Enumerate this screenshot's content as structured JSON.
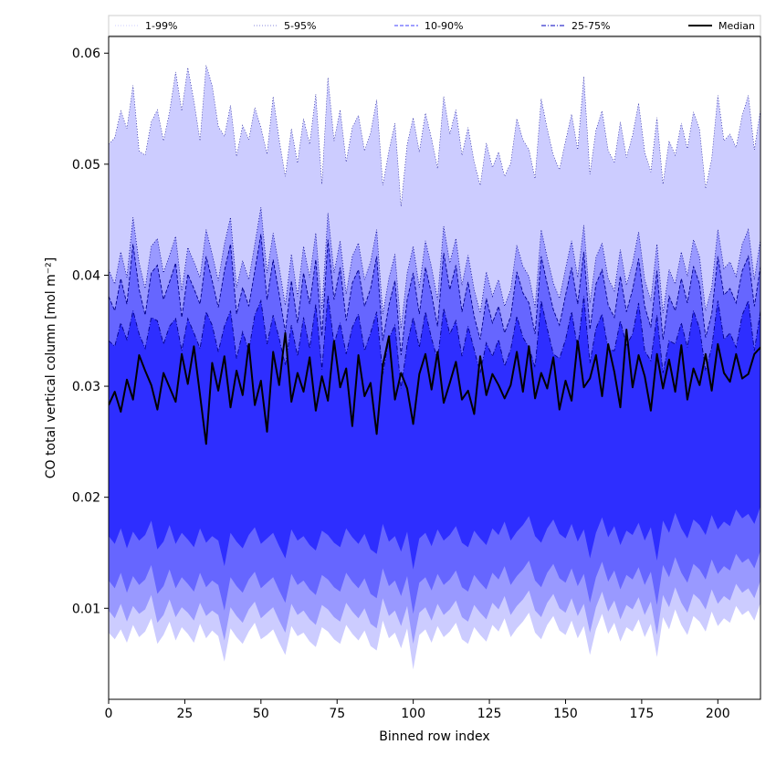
{
  "chart_data": {
    "type": "area",
    "title": "",
    "xlabel": "Binned row index",
    "ylabel": "CO total vertical column [mol m⁻²]",
    "xlim": [
      0,
      214
    ],
    "ylim": [
      0.0018,
      0.0615
    ],
    "x_ticks": [
      0,
      25,
      50,
      75,
      100,
      125,
      150,
      175,
      200
    ],
    "y_ticks": [
      0.01,
      0.02,
      0.03,
      0.04,
      0.05,
      0.06
    ],
    "x_tick_labels": [
      "0",
      "25",
      "50",
      "75",
      "100",
      "125",
      "150",
      "175",
      "200"
    ],
    "y_tick_labels": [
      "0.01",
      "0.02",
      "0.03",
      "0.04",
      "0.05",
      "0.06"
    ],
    "grid": false,
    "legend_position": "top",
    "colors": {
      "band_1_99": "#ccccff",
      "band_5_95": "#9999ff",
      "band_10_90": "#6666ff",
      "band_25_75": "#2e2eff",
      "median": "#000000",
      "outline": "#00008b"
    },
    "legend": [
      {
        "label": "1-99%",
        "style": "dotted"
      },
      {
        "label": "5-95%",
        "style": "dotted"
      },
      {
        "label": "10-90%",
        "style": "dashed"
      },
      {
        "label": "25-75%",
        "style": "dashdot"
      },
      {
        "label": "Median",
        "style": "solid"
      }
    ],
    "x_start": 0,
    "x_step": 2,
    "series": [
      {
        "name": "1-99%",
        "lower": [
          0.0078,
          0.0072,
          0.0081,
          0.0069,
          0.0085,
          0.0074,
          0.0079,
          0.0091,
          0.0068,
          0.0076,
          0.0088,
          0.0071,
          0.0083,
          0.0077,
          0.0069,
          0.0086,
          0.0073,
          0.008,
          0.0075,
          0.0052,
          0.0082,
          0.0074,
          0.0068,
          0.0079,
          0.0087,
          0.0072,
          0.0076,
          0.0081,
          0.0069,
          0.0058,
          0.0084,
          0.0075,
          0.0078,
          0.007,
          0.0065,
          0.0083,
          0.0079,
          0.0072,
          0.0068,
          0.0085,
          0.0077,
          0.0071,
          0.008,
          0.0066,
          0.0062,
          0.0089,
          0.0073,
          0.0078,
          0.0064,
          0.0082,
          0.0045,
          0.0076,
          0.0081,
          0.0069,
          0.0084,
          0.0074,
          0.0079,
          0.0087,
          0.0072,
          0.0068,
          0.0083,
          0.0076,
          0.007,
          0.0085,
          0.0079,
          0.0091,
          0.0074,
          0.0082,
          0.0088,
          0.0096,
          0.0078,
          0.0072,
          0.0085,
          0.0093,
          0.008,
          0.0076,
          0.0089,
          0.0073,
          0.0084,
          0.0058,
          0.0081,
          0.0095,
          0.0077,
          0.0087,
          0.007,
          0.0083,
          0.0079,
          0.009,
          0.0074,
          0.0086,
          0.0056,
          0.0092,
          0.0081,
          0.0099,
          0.0085,
          0.0076,
          0.0093,
          0.0088,
          0.0079,
          0.0097,
          0.0084,
          0.0091,
          0.0087,
          0.0102,
          0.0094,
          0.0098,
          0.0089,
          0.0105,
          0.0096,
          0.0108
        ]
      },
      {
        "name": "1-99%",
        "upper": [
          0.0518,
          0.0524,
          0.0548,
          0.0532,
          0.0571,
          0.0512,
          0.0508,
          0.0538,
          0.0549,
          0.0521,
          0.0547,
          0.0583,
          0.0548,
          0.0587,
          0.0557,
          0.0521,
          0.0589,
          0.0571,
          0.0534,
          0.0525,
          0.0553,
          0.0507,
          0.0535,
          0.0522,
          0.0551,
          0.0533,
          0.0509,
          0.0561,
          0.0522,
          0.0489,
          0.0532,
          0.0501,
          0.0541,
          0.0518,
          0.0563,
          0.0482,
          0.0578,
          0.0521,
          0.0549,
          0.0502,
          0.0533,
          0.0544,
          0.0512,
          0.0528,
          0.0558,
          0.0481,
          0.0512,
          0.0537,
          0.0462,
          0.0518,
          0.0542,
          0.0511,
          0.0546,
          0.0523,
          0.0496,
          0.0561,
          0.0527,
          0.0549,
          0.0508,
          0.0533,
          0.0502,
          0.0481,
          0.0519,
          0.0497,
          0.0511,
          0.0489,
          0.0501,
          0.0541,
          0.0522,
          0.0513,
          0.0487,
          0.0559,
          0.0532,
          0.0508,
          0.0495,
          0.0521,
          0.0545,
          0.0513,
          0.0579,
          0.0491,
          0.0531,
          0.0548,
          0.0512,
          0.0502,
          0.0538,
          0.0506,
          0.0526,
          0.0555,
          0.0511,
          0.0493,
          0.0542,
          0.0482,
          0.0521,
          0.0508,
          0.0537,
          0.0514,
          0.0547,
          0.0531,
          0.0478,
          0.0505,
          0.0562,
          0.0521,
          0.0527,
          0.0515,
          0.0544,
          0.0562,
          0.0513,
          0.0549,
          0.0536,
          0.0531
        ]
      },
      {
        "name": "5-95%",
        "lower": [
          0.0098,
          0.0091,
          0.0104,
          0.0088,
          0.0102,
          0.0095,
          0.0099,
          0.0112,
          0.0087,
          0.0094,
          0.0108,
          0.0092,
          0.0101,
          0.0096,
          0.0089,
          0.0105,
          0.0093,
          0.0098,
          0.0094,
          0.0071,
          0.0101,
          0.0093,
          0.0087,
          0.0099,
          0.0106,
          0.0091,
          0.0096,
          0.0101,
          0.0089,
          0.0078,
          0.0104,
          0.0094,
          0.0098,
          0.009,
          0.0085,
          0.0103,
          0.0099,
          0.0092,
          0.0088,
          0.0105,
          0.0097,
          0.0091,
          0.01,
          0.0086,
          0.0082,
          0.0109,
          0.0093,
          0.0098,
          0.0084,
          0.0102,
          0.0068,
          0.0096,
          0.0101,
          0.0089,
          0.0104,
          0.0094,
          0.0099,
          0.0107,
          0.0092,
          0.0088,
          0.0103,
          0.0096,
          0.009,
          0.0105,
          0.0099,
          0.0111,
          0.0094,
          0.0102,
          0.0108,
          0.0116,
          0.0098,
          0.0092,
          0.0105,
          0.0113,
          0.01,
          0.0096,
          0.0109,
          0.0093,
          0.0104,
          0.0078,
          0.0101,
          0.0115,
          0.0097,
          0.0107,
          0.009,
          0.0103,
          0.0099,
          0.011,
          0.0094,
          0.0106,
          0.0076,
          0.0112,
          0.0101,
          0.0119,
          0.0105,
          0.0096,
          0.0113,
          0.0108,
          0.0099,
          0.0117,
          0.0104,
          0.0111,
          0.0107,
          0.0122,
          0.0114,
          0.0118,
          0.0109,
          0.0125,
          0.0116,
          0.0128
        ]
      },
      {
        "name": "5-95%",
        "upper": [
          0.0405,
          0.0392,
          0.0421,
          0.0398,
          0.0452,
          0.0411,
          0.0388,
          0.0426,
          0.0433,
          0.0402,
          0.0418,
          0.0435,
          0.0386,
          0.0425,
          0.0412,
          0.0398,
          0.0441,
          0.0419,
          0.0395,
          0.0428,
          0.0452,
          0.0389,
          0.0413,
          0.0396,
          0.0428,
          0.0461,
          0.0402,
          0.0438,
          0.0407,
          0.0373,
          0.0419,
          0.0381,
          0.0426,
          0.0398,
          0.0438,
          0.0369,
          0.0456,
          0.0402,
          0.0431,
          0.0383,
          0.0417,
          0.0429,
          0.0396,
          0.0412,
          0.0441,
          0.0365,
          0.0397,
          0.0419,
          0.0352,
          0.0402,
          0.0426,
          0.0389,
          0.0431,
          0.0407,
          0.0378,
          0.0444,
          0.0411,
          0.0433,
          0.0391,
          0.0418,
          0.0387,
          0.0366,
          0.0403,
          0.0381,
          0.0396,
          0.0372,
          0.0387,
          0.0427,
          0.0408,
          0.0399,
          0.0371,
          0.0441,
          0.0416,
          0.0393,
          0.0379,
          0.0406,
          0.0431,
          0.0398,
          0.0445,
          0.0375,
          0.0416,
          0.0429,
          0.0397,
          0.0386,
          0.0423,
          0.0391,
          0.0411,
          0.0439,
          0.0396,
          0.0377,
          0.0428,
          0.0366,
          0.0405,
          0.0392,
          0.0421,
          0.0399,
          0.0432,
          0.0416,
          0.0368,
          0.0389,
          0.0441,
          0.0406,
          0.0412,
          0.0399,
          0.0428,
          0.0441,
          0.0396,
          0.0432,
          0.0421,
          0.0436
        ]
      },
      {
        "name": "10-90%",
        "lower": [
          0.0125,
          0.0118,
          0.0132,
          0.0114,
          0.0129,
          0.0121,
          0.0126,
          0.0139,
          0.0113,
          0.012,
          0.0135,
          0.0118,
          0.0128,
          0.0122,
          0.0115,
          0.0132,
          0.0119,
          0.0125,
          0.0121,
          0.0098,
          0.0128,
          0.012,
          0.0114,
          0.0126,
          0.0133,
          0.0118,
          0.0123,
          0.0128,
          0.0116,
          0.0105,
          0.0131,
          0.0121,
          0.0125,
          0.0117,
          0.0112,
          0.013,
          0.0126,
          0.0119,
          0.0115,
          0.0132,
          0.0124,
          0.0118,
          0.0127,
          0.0113,
          0.0109,
          0.0136,
          0.012,
          0.0125,
          0.0111,
          0.0129,
          0.0095,
          0.0123,
          0.0128,
          0.0116,
          0.0131,
          0.0121,
          0.0126,
          0.0134,
          0.0119,
          0.0115,
          0.013,
          0.0123,
          0.0117,
          0.0132,
          0.0126,
          0.0138,
          0.0121,
          0.0129,
          0.0135,
          0.0143,
          0.0125,
          0.0119,
          0.0132,
          0.014,
          0.0127,
          0.0123,
          0.0136,
          0.012,
          0.0131,
          0.0105,
          0.0128,
          0.0142,
          0.0124,
          0.0134,
          0.0117,
          0.013,
          0.0126,
          0.0137,
          0.0121,
          0.0133,
          0.0103,
          0.0139,
          0.0128,
          0.0146,
          0.0132,
          0.0123,
          0.014,
          0.0135,
          0.0126,
          0.0144,
          0.0131,
          0.0138,
          0.0134,
          0.0149,
          0.0141,
          0.0145,
          0.0136,
          0.0152,
          0.0143,
          0.0155
        ]
      },
      {
        "name": "10-90%",
        "upper": [
          0.0381,
          0.0368,
          0.0397,
          0.0374,
          0.0428,
          0.0387,
          0.0364,
          0.0402,
          0.0409,
          0.0378,
          0.0394,
          0.0411,
          0.0362,
          0.0401,
          0.0388,
          0.0374,
          0.0417,
          0.0395,
          0.0371,
          0.0404,
          0.0428,
          0.0365,
          0.0389,
          0.0372,
          0.0404,
          0.0437,
          0.0378,
          0.0414,
          0.0383,
          0.0349,
          0.0395,
          0.0357,
          0.0402,
          0.0374,
          0.0414,
          0.0345,
          0.0432,
          0.0378,
          0.0407,
          0.0359,
          0.0393,
          0.0405,
          0.0372,
          0.0388,
          0.0417,
          0.0341,
          0.0373,
          0.0395,
          0.0328,
          0.0378,
          0.0402,
          0.0365,
          0.0407,
          0.0383,
          0.0354,
          0.042,
          0.0387,
          0.0409,
          0.0367,
          0.0394,
          0.0363,
          0.0342,
          0.0379,
          0.0357,
          0.0372,
          0.0348,
          0.0363,
          0.0403,
          0.0384,
          0.0375,
          0.0347,
          0.0417,
          0.0392,
          0.0369,
          0.0355,
          0.0382,
          0.0407,
          0.0374,
          0.0421,
          0.0351,
          0.0392,
          0.0405,
          0.0373,
          0.0362,
          0.0399,
          0.0367,
          0.0387,
          0.0415,
          0.0372,
          0.0353,
          0.0404,
          0.0342,
          0.0381,
          0.0368,
          0.0397,
          0.0375,
          0.0408,
          0.0392,
          0.0344,
          0.0365,
          0.0417,
          0.0382,
          0.0388,
          0.0375,
          0.0404,
          0.0417,
          0.0372,
          0.0408,
          0.0397,
          0.0412
        ]
      },
      {
        "name": "25-75%",
        "lower": [
          0.0165,
          0.0158,
          0.0172,
          0.0154,
          0.0169,
          0.0161,
          0.0166,
          0.0179,
          0.0153,
          0.016,
          0.0175,
          0.0158,
          0.0168,
          0.0162,
          0.0155,
          0.0172,
          0.0159,
          0.0165,
          0.0161,
          0.0138,
          0.0168,
          0.016,
          0.0154,
          0.0166,
          0.0173,
          0.0158,
          0.0163,
          0.0168,
          0.0156,
          0.0145,
          0.0171,
          0.0161,
          0.0165,
          0.0157,
          0.0152,
          0.017,
          0.0166,
          0.0159,
          0.0155,
          0.0172,
          0.0164,
          0.0158,
          0.0167,
          0.0153,
          0.0149,
          0.0176,
          0.016,
          0.0165,
          0.0151,
          0.0169,
          0.0135,
          0.0163,
          0.0168,
          0.0156,
          0.0171,
          0.0161,
          0.0166,
          0.0174,
          0.0159,
          0.0155,
          0.017,
          0.0163,
          0.0157,
          0.0172,
          0.0166,
          0.0178,
          0.0161,
          0.0169,
          0.0175,
          0.0183,
          0.0165,
          0.0159,
          0.0172,
          0.018,
          0.0167,
          0.0163,
          0.0176,
          0.016,
          0.0171,
          0.0145,
          0.0168,
          0.0182,
          0.0164,
          0.0174,
          0.0157,
          0.017,
          0.0166,
          0.0177,
          0.0161,
          0.0173,
          0.0143,
          0.0179,
          0.0168,
          0.0186,
          0.0172,
          0.0163,
          0.018,
          0.0175,
          0.0166,
          0.0184,
          0.0171,
          0.0178,
          0.0174,
          0.0189,
          0.0181,
          0.0185,
          0.0176,
          0.0192,
          0.0183,
          0.0195
        ]
      },
      {
        "name": "25-75%",
        "upper": [
          0.0341,
          0.0336,
          0.0357,
          0.0342,
          0.0368,
          0.0347,
          0.0334,
          0.0362,
          0.0359,
          0.0338,
          0.0354,
          0.0361,
          0.0332,
          0.0361,
          0.0348,
          0.0334,
          0.0367,
          0.0355,
          0.0331,
          0.0354,
          0.0368,
          0.0325,
          0.0349,
          0.0332,
          0.0364,
          0.0377,
          0.0338,
          0.0364,
          0.0343,
          0.0319,
          0.0355,
          0.0327,
          0.0362,
          0.0334,
          0.0374,
          0.0315,
          0.0382,
          0.0338,
          0.0357,
          0.0329,
          0.0353,
          0.0365,
          0.0332,
          0.0348,
          0.0367,
          0.0311,
          0.0343,
          0.0355,
          0.0298,
          0.0338,
          0.0362,
          0.0335,
          0.0367,
          0.0343,
          0.0324,
          0.037,
          0.0347,
          0.0359,
          0.0327,
          0.0354,
          0.0333,
          0.0312,
          0.0339,
          0.0327,
          0.0342,
          0.0318,
          0.0333,
          0.0363,
          0.0344,
          0.0335,
          0.0317,
          0.0377,
          0.0352,
          0.0329,
          0.0325,
          0.0342,
          0.0367,
          0.0334,
          0.0381,
          0.0321,
          0.0352,
          0.0365,
          0.0333,
          0.0332,
          0.0359,
          0.0337,
          0.0347,
          0.0375,
          0.0332,
          0.0323,
          0.0364,
          0.0312,
          0.0341,
          0.0338,
          0.0357,
          0.0335,
          0.0368,
          0.0352,
          0.0314,
          0.0335,
          0.0377,
          0.0342,
          0.0348,
          0.0335,
          0.0364,
          0.0377,
          0.0332,
          0.0368,
          0.0357,
          0.0372
        ]
      },
      {
        "name": "Median",
        "values": [
          0.0283,
          0.0295,
          0.0277,
          0.0306,
          0.0288,
          0.0328,
          0.0314,
          0.0301,
          0.0279,
          0.0312,
          0.0299,
          0.0286,
          0.0329,
          0.0302,
          0.0336,
          0.0292,
          0.0248,
          0.0321,
          0.0296,
          0.0327,
          0.0281,
          0.0314,
          0.0292,
          0.0338,
          0.0283,
          0.0305,
          0.0259,
          0.0331,
          0.0301,
          0.0348,
          0.0286,
          0.0312,
          0.0295,
          0.0326,
          0.0278,
          0.0309,
          0.0287,
          0.0341,
          0.0299,
          0.0316,
          0.0264,
          0.0328,
          0.0291,
          0.0303,
          0.0257,
          0.0319,
          0.0345,
          0.0288,
          0.0312,
          0.0298,
          0.0266,
          0.0311,
          0.0329,
          0.0297,
          0.0331,
          0.0285,
          0.0303,
          0.0322,
          0.0288,
          0.0296,
          0.0275,
          0.0327,
          0.0292,
          0.0311,
          0.0301,
          0.0289,
          0.0301,
          0.0331,
          0.0295,
          0.0336,
          0.0289,
          0.0312,
          0.0298,
          0.0326,
          0.0279,
          0.0305,
          0.0287,
          0.0341,
          0.0299,
          0.0307,
          0.0328,
          0.0291,
          0.0338,
          0.0313,
          0.0281,
          0.0351,
          0.0299,
          0.0328,
          0.0309,
          0.0278,
          0.0329,
          0.0298,
          0.0324,
          0.0295,
          0.0337,
          0.0288,
          0.0316,
          0.0301,
          0.0329,
          0.0296,
          0.0338,
          0.0312,
          0.0304,
          0.0329,
          0.0307,
          0.0311,
          0.0329,
          0.0335,
          0.0312,
          0.0331
        ]
      }
    ]
  }
}
